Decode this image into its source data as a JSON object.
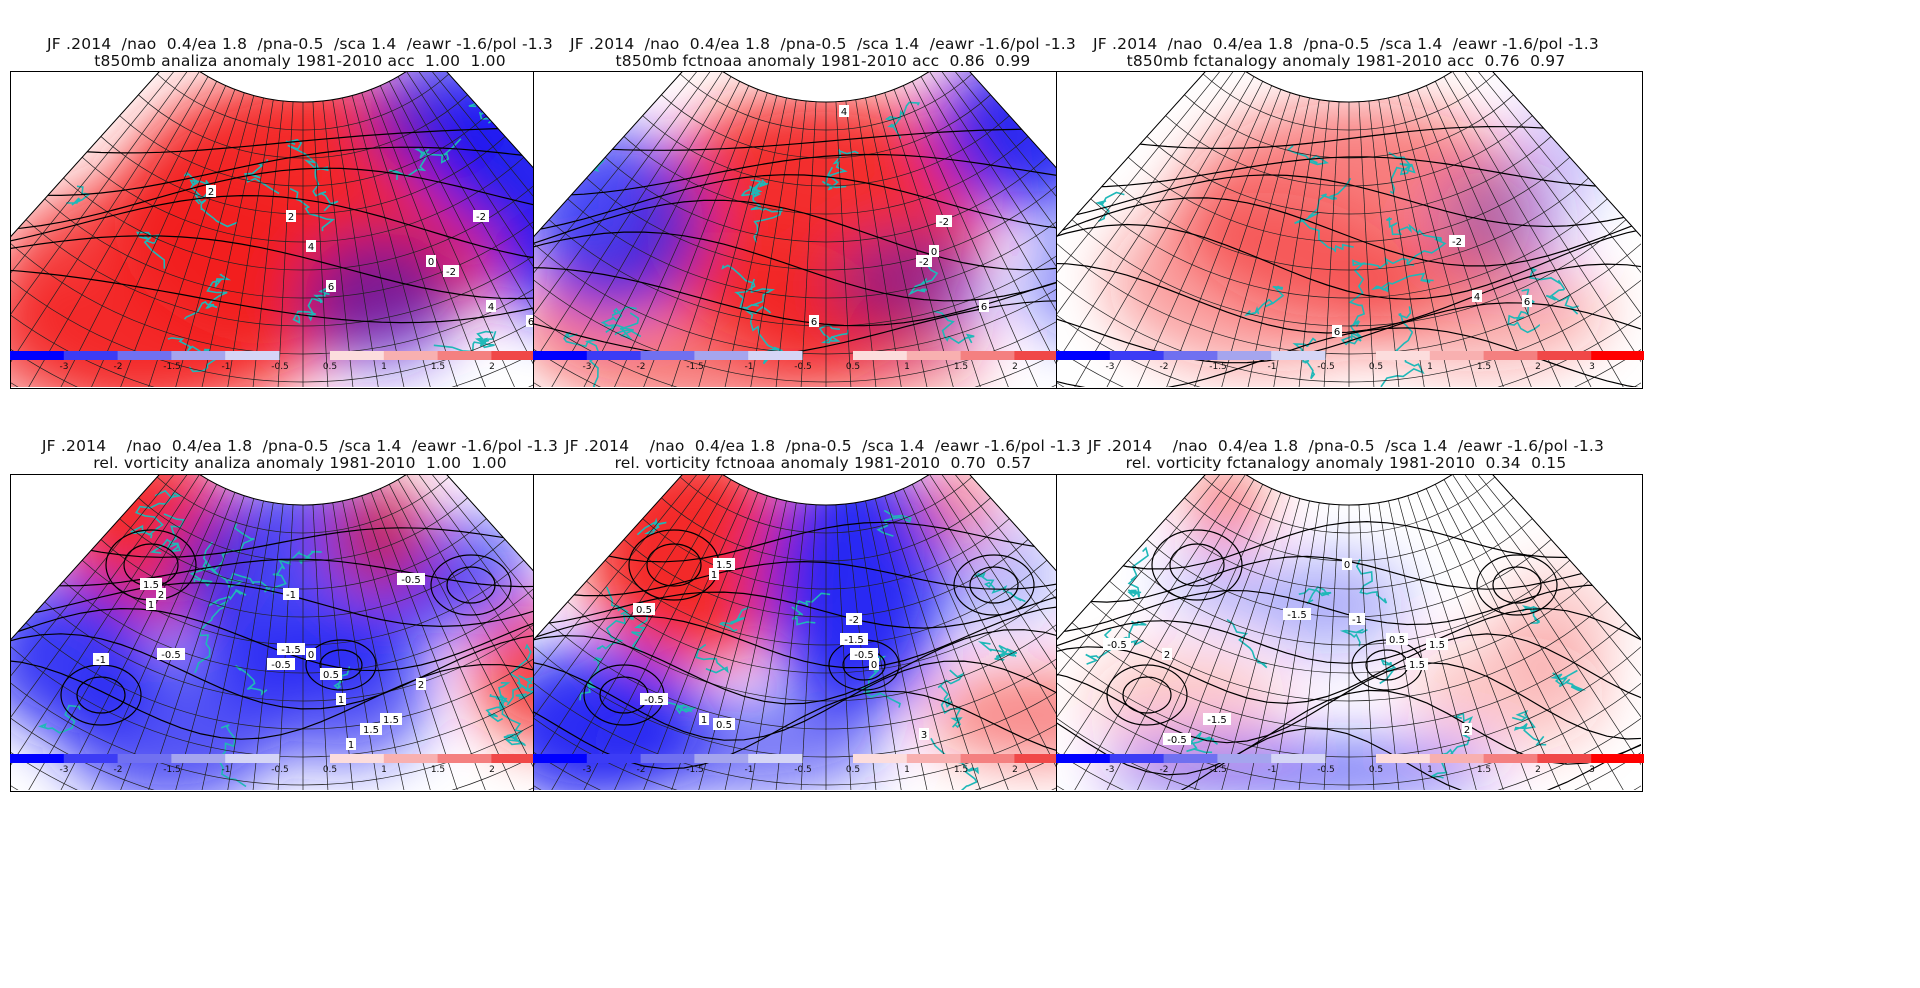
{
  "colorbar": {
    "labels": [
      "-3",
      "-2",
      "-1.5",
      "-1",
      "-0.5",
      "0.5",
      "1",
      "1.5",
      "2",
      "3"
    ],
    "neg_colors": [
      "#0000ff",
      "#3c3cf5",
      "#7070f0",
      "#a5a5ee",
      "#d5d5f6"
    ],
    "pos_colors": [
      "#fcdddd",
      "#f8b0b0",
      "#f48080",
      "#f04848",
      "#ff0000"
    ]
  },
  "colors": {
    "coast": "#1fb8b8",
    "grid": "#222222",
    "contour": "#000000",
    "strong_red": "#f21a1a",
    "strong_blue": "#1a1af2"
  },
  "panels": [
    {
      "id": "t850-analiza",
      "title1": "JF .2014  /nao  0.4/ea 1.8  /pna-0.5  /sca 1.4  /eawr -1.6/pol -1.3",
      "title2": "t850mb analiza anomaly 1981-2010 acc  1.00  1.00",
      "contour_labels": [
        "2",
        "2",
        "4",
        "6",
        "-2",
        "0",
        "-2",
        "6",
        "4"
      ]
    },
    {
      "id": "t850-fctnoaa",
      "title1": "JF .2014  /nao  0.4/ea 1.8  /pna-0.5  /sca 1.4  /eawr -1.6/pol -1.3",
      "title2": "t850mb fctnoaa anomaly 1981-2010 acc  0.86  0.99",
      "contour_labels": [
        "4",
        "-2",
        "0",
        "-2",
        "6",
        "6"
      ]
    },
    {
      "id": "t850-fctanalogy",
      "title1": "JF .2014  /nao  0.4/ea 1.8  /pna-0.5  /sca 1.4  /eawr -1.6/pol -1.3",
      "title2": "t850mb fctanalogy anomaly 1981-2010 acc  0.76  0.97",
      "contour_labels": [
        "-2",
        "4",
        "6",
        "6"
      ]
    },
    {
      "id": "vort-analiza",
      "title1": "JF .2014    /nao  0.4/ea 1.8  /pna-0.5  /sca 1.4  /eawr -1.6/pol -1.3",
      "title2": "rel. vorticity analiza anomaly 1981-2010  1.00  1.00",
      "contour_labels": [
        "1.5",
        "2",
        "1",
        "-1",
        "-0.5",
        "-1.5",
        "-0.5",
        "0",
        "0.5",
        "1",
        "1.5",
        "-0.5",
        "-1",
        "2",
        "1.5",
        "1"
      ]
    },
    {
      "id": "vort-fctnoaa",
      "title1": "JF .2014    /nao  0.4/ea 1.8  /pna-0.5  /sca 1.4  /eawr -1.6/pol -1.3",
      "title2": "rel. vorticity fctnoaa anomaly 1981-2010  0.70  0.57",
      "contour_labels": [
        "1.5",
        "1",
        "0.5",
        "-2",
        "-1.5",
        "-0.5",
        "0",
        "-0.5",
        "1",
        "0.5",
        "3"
      ]
    },
    {
      "id": "vort-fctanalogy",
      "title1": "JF .2014    /nao  0.4/ea 1.8  /pna-0.5  /sca 1.4  /eawr -1.6/pol -1.3",
      "title2": "rel. vorticity fctanalogy anomaly 1981-2010  0.34  0.15",
      "contour_labels": [
        "0",
        "-1.5",
        "-0.5",
        "-1",
        "0.5",
        "1.5",
        "1.5",
        "2",
        "-1.5",
        "-0.5",
        "2"
      ]
    }
  ]
}
